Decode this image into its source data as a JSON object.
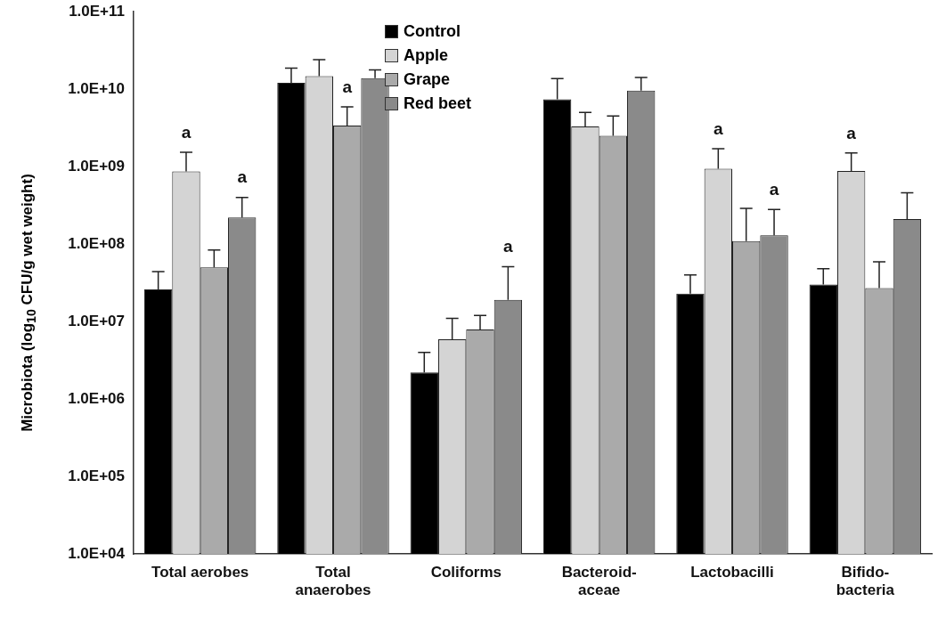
{
  "chart_data": {
    "type": "bar",
    "ylabel": "Microbiota (log$_{10}$ CFU/g wet weight)",
    "categories": [
      "Total aerobes",
      "Total\nanaerobes",
      "Coliforms",
      "Bacteroid-\naceae",
      "Lactobacilli",
      "Bifido-\nbacteria"
    ],
    "series": [
      {
        "name": "Control",
        "color": "#000000",
        "values": [
          26000000,
          12100000000,
          2200000,
          7400000000,
          23000000,
          30000000
        ],
        "errors": [
          [
            26000000,
            44000000
          ],
          [
            12100000000,
            18700000000
          ],
          [
            2200000,
            4000000
          ],
          [
            7400000000,
            13700000000
          ],
          [
            23000000,
            40000000
          ],
          [
            30000000,
            48000000
          ]
        ]
      },
      {
        "name": "Apple",
        "color": "#d4d4d4",
        "values": [
          870000000,
          14700000000,
          5900000,
          3300000000,
          940000000,
          880000000
        ],
        "errors": [
          [
            870000000,
            1530000000
          ],
          [
            14700000000,
            24000000000
          ],
          [
            5900000,
            11000000
          ],
          [
            3300000000,
            5000000000
          ],
          [
            940000000,
            1700000000
          ],
          [
            880000000,
            1500000000
          ]
        ],
        "value_labels": [
          "a",
          null,
          null,
          null,
          "a",
          "a"
        ]
      },
      {
        "name": "Grape",
        "color": "#aaaaaa",
        "values": [
          50000000,
          3400000000,
          7900000,
          2500000000,
          109000000,
          27000000
        ],
        "errors": [
          [
            50000000,
            84000000
          ],
          [
            3400000000,
            5900000000
          ],
          [
            7900000,
            12000000
          ],
          [
            2500000000,
            4500000000
          ],
          [
            109000000,
            290000000
          ],
          [
            27000000,
            59000000
          ]
        ],
        "value_labels": [
          null,
          "a",
          null,
          null,
          null,
          null
        ]
      },
      {
        "name": "Red beet",
        "color": "#8a8a8a",
        "values": [
          220000000,
          13900000000,
          19000000,
          9600000000,
          130000000,
          210000000
        ],
        "errors": [
          [
            220000000,
            400000000
          ],
          [
            13900000000,
            17700000000
          ],
          [
            19000000,
            51000000
          ],
          [
            9600000000,
            14200000000
          ],
          [
            130000000,
            280000000
          ],
          [
            210000000,
            460000000
          ]
        ],
        "value_labels": [
          "a",
          null,
          "a",
          null,
          "a",
          null
        ]
      }
    ],
    "log": "y",
    "ylim": [
      10000,
      100000000000
    ],
    "yticks": [
      {
        "value": 10000,
        "label": "1.0E+04"
      },
      {
        "value": 100000,
        "label": "1.0E+05"
      },
      {
        "value": 1000000,
        "label": "1.0E+06"
      },
      {
        "value": 10000000,
        "label": "1.0E+07"
      },
      {
        "value": 100000000,
        "label": "1.0E+08"
      },
      {
        "value": 1000000000,
        "label": "1.0E+09"
      },
      {
        "value": 10000000000,
        "label": "1.0E+10"
      },
      {
        "value": 100000000000,
        "label": "1.0E+11"
      }
    ],
    "grid": false,
    "legend": "top"
  }
}
